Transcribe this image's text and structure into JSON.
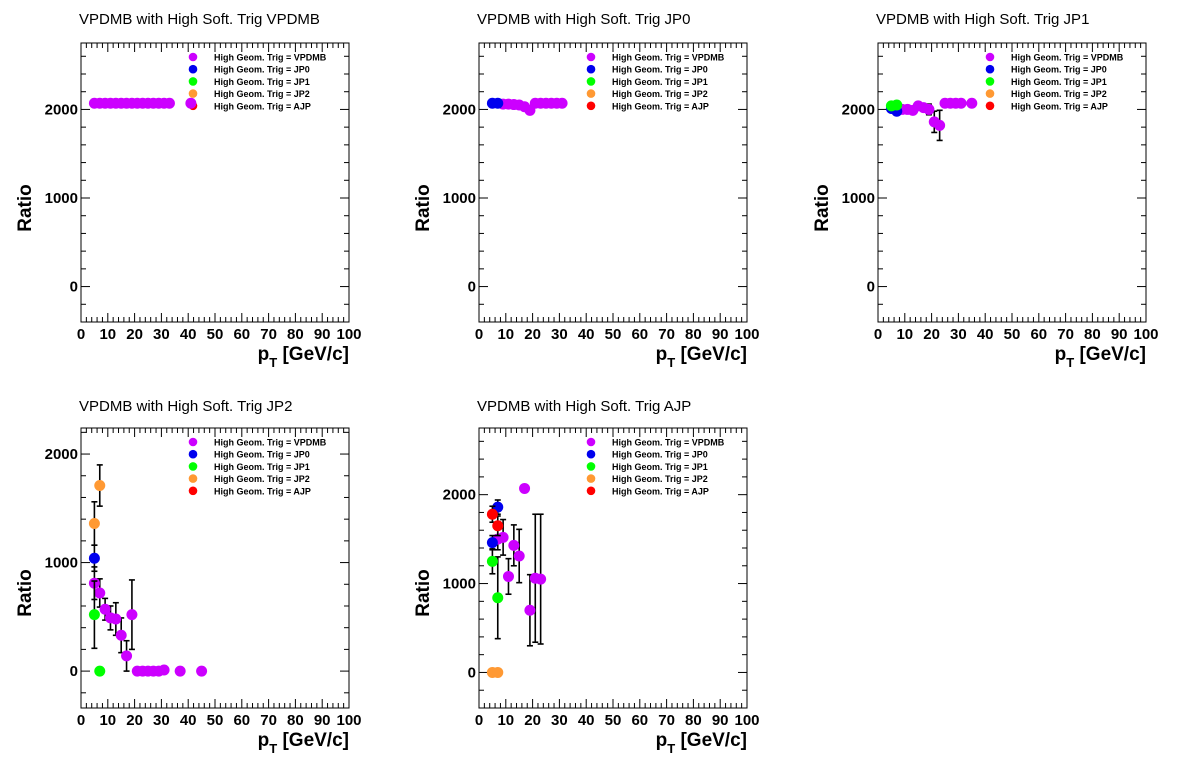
{
  "colors": {
    "VPDMB": "#cc00ff",
    "JP0": "#0000ee",
    "JP1": "#00ff00",
    "JP2": "#ff9933",
    "AJP": "#ff0000"
  },
  "legend_entries": [
    {
      "key": "VPDMB",
      "label": "High Geom. Trig = VPDMB"
    },
    {
      "key": "JP0",
      "label": "High Geom. Trig = JP0"
    },
    {
      "key": "JP1",
      "label": "High Geom. Trig = JP1"
    },
    {
      "key": "JP2",
      "label": "High Geom. Trig = JP2"
    },
    {
      "key": "AJP",
      "label": "High Geom. Trig = AJP"
    }
  ],
  "chart_data": [
    {
      "type": "scatter",
      "title": "VPDMB with High Soft. Trig VPDMB",
      "xlabel_main": "p",
      "xlabel_sub": "T",
      "xlabel_rest": " [GeV/c]",
      "ylabel": "Ratio",
      "xlim": [
        0,
        100
      ],
      "ylim": [
        -400,
        2750
      ],
      "xticks": [
        0,
        10,
        20,
        30,
        40,
        50,
        60,
        70,
        80,
        90,
        100
      ],
      "yticks": [
        0,
        1000,
        2000
      ],
      "legend_position": "top-right",
      "series": [
        {
          "key": "VPDMB",
          "points": [
            {
              "x": 5,
              "y": 2070
            },
            {
              "x": 7,
              "y": 2070
            },
            {
              "x": 9,
              "y": 2070
            },
            {
              "x": 11,
              "y": 2070
            },
            {
              "x": 13,
              "y": 2070
            },
            {
              "x": 15,
              "y": 2070
            },
            {
              "x": 17,
              "y": 2070
            },
            {
              "x": 19,
              "y": 2070
            },
            {
              "x": 21,
              "y": 2070
            },
            {
              "x": 23,
              "y": 2070
            },
            {
              "x": 25,
              "y": 2070
            },
            {
              "x": 27,
              "y": 2070
            },
            {
              "x": 29,
              "y": 2070
            },
            {
              "x": 31,
              "y": 2070
            },
            {
              "x": 33,
              "y": 2070
            },
            {
              "x": 41,
              "y": 2070
            }
          ]
        },
        {
          "key": "JP0",
          "points": []
        },
        {
          "key": "JP1",
          "points": []
        },
        {
          "key": "JP2",
          "points": []
        },
        {
          "key": "AJP",
          "points": []
        }
      ]
    },
    {
      "type": "scatter",
      "title": "VPDMB with High Soft. Trig JP0",
      "xlabel_main": "p",
      "xlabel_sub": "T",
      "xlabel_rest": " [GeV/c]",
      "ylabel": "Ratio",
      "xlim": [
        0,
        100
      ],
      "ylim": [
        -400,
        2750
      ],
      "xticks": [
        0,
        10,
        20,
        30,
        40,
        50,
        60,
        70,
        80,
        90,
        100
      ],
      "yticks": [
        0,
        1000,
        2000
      ],
      "legend_position": "top-right",
      "series": [
        {
          "key": "VPDMB",
          "points": [
            {
              "x": 9,
              "y": 2060
            },
            {
              "x": 11,
              "y": 2060
            },
            {
              "x": 13,
              "y": 2055
            },
            {
              "x": 15,
              "y": 2050
            },
            {
              "x": 17,
              "y": 2030
            },
            {
              "x": 19,
              "y": 1990
            },
            {
              "x": 21,
              "y": 2070
            },
            {
              "x": 23,
              "y": 2070
            },
            {
              "x": 25,
              "y": 2070
            },
            {
              "x": 27,
              "y": 2070
            },
            {
              "x": 29,
              "y": 2070
            },
            {
              "x": 31,
              "y": 2070
            }
          ]
        },
        {
          "key": "JP0",
          "points": [
            {
              "x": 5,
              "y": 2070
            },
            {
              "x": 7,
              "y": 2070
            }
          ]
        },
        {
          "key": "JP1",
          "points": []
        },
        {
          "key": "JP2",
          "points": []
        },
        {
          "key": "AJP",
          "points": []
        }
      ]
    },
    {
      "type": "scatter",
      "title": "VPDMB with High Soft. Trig JP1",
      "xlabel_main": "p",
      "xlabel_sub": "T",
      "xlabel_rest": " [GeV/c]",
      "ylabel": "Ratio",
      "xlim": [
        0,
        100
      ],
      "ylim": [
        -400,
        2750
      ],
      "xticks": [
        0,
        10,
        20,
        30,
        40,
        50,
        60,
        70,
        80,
        90,
        100
      ],
      "yticks": [
        0,
        1000,
        2000
      ],
      "legend_position": "top-right",
      "series": [
        {
          "key": "VPDMB",
          "points": [
            {
              "x": 9,
              "y": 2000
            },
            {
              "x": 11,
              "y": 2000
            },
            {
              "x": 13,
              "y": 1990
            },
            {
              "x": 15,
              "y": 2040
            },
            {
              "x": 17,
              "y": 2020
            },
            {
              "x": 19,
              "y": 2000,
              "err": 60
            },
            {
              "x": 21,
              "y": 1860,
              "err": 120
            },
            {
              "x": 23,
              "y": 1820,
              "err": 170
            },
            {
              "x": 25,
              "y": 2070
            },
            {
              "x": 27,
              "y": 2070
            },
            {
              "x": 29,
              "y": 2070
            },
            {
              "x": 31,
              "y": 2070
            },
            {
              "x": 35,
              "y": 2070
            }
          ]
        },
        {
          "key": "JP0",
          "points": [
            {
              "x": 5,
              "y": 2010
            },
            {
              "x": 7,
              "y": 1980
            }
          ]
        },
        {
          "key": "JP1",
          "points": [
            {
              "x": 5,
              "y": 2040
            },
            {
              "x": 7,
              "y": 2050
            }
          ]
        },
        {
          "key": "JP2",
          "points": []
        },
        {
          "key": "AJP",
          "points": []
        }
      ]
    },
    {
      "type": "scatter",
      "title": "VPDMB with High Soft. Trig JP2",
      "xlabel_main": "p",
      "xlabel_sub": "T",
      "xlabel_rest": " [GeV/c]",
      "ylabel": "Ratio",
      "xlim": [
        0,
        100
      ],
      "ylim": [
        -340,
        2240
      ],
      "xticks": [
        0,
        10,
        20,
        30,
        40,
        50,
        60,
        70,
        80,
        90,
        100
      ],
      "yticks": [
        0,
        1000,
        2000
      ],
      "legend_position": "top-right",
      "series": [
        {
          "key": "VPDMB",
          "points": [
            {
              "x": 5,
              "y": 810,
              "err": 150
            },
            {
              "x": 7,
              "y": 720,
              "err": 130
            },
            {
              "x": 9,
              "y": 570,
              "err": 100
            },
            {
              "x": 11,
              "y": 490,
              "err": 110
            },
            {
              "x": 13,
              "y": 480,
              "err": 150
            },
            {
              "x": 15,
              "y": 330,
              "err": 160
            },
            {
              "x": 17,
              "y": 140,
              "err": 140
            },
            {
              "x": 19,
              "y": 520,
              "err": 320
            },
            {
              "x": 21,
              "y": 0
            },
            {
              "x": 23,
              "y": 0
            },
            {
              "x": 25,
              "y": 0
            },
            {
              "x": 27,
              "y": 0
            },
            {
              "x": 29,
              "y": 0
            },
            {
              "x": 31,
              "y": 10
            },
            {
              "x": 37,
              "y": 0
            },
            {
              "x": 45,
              "y": 0
            }
          ]
        },
        {
          "key": "JP0",
          "points": [
            {
              "x": 5,
              "y": 1040,
              "err": 120
            }
          ]
        },
        {
          "key": "JP1",
          "points": [
            {
              "x": 5,
              "y": 520,
              "err": 310
            },
            {
              "x": 7,
              "y": 0
            }
          ]
        },
        {
          "key": "JP2",
          "points": [
            {
              "x": 5,
              "y": 1360,
              "err": 200
            },
            {
              "x": 7,
              "y": 1710,
              "err": 190
            }
          ]
        },
        {
          "key": "AJP",
          "points": []
        }
      ]
    },
    {
      "type": "scatter",
      "title": "VPDMB with High Soft. Trig AJP",
      "xlabel_main": "p",
      "xlabel_sub": "T",
      "xlabel_rest": " [GeV/c]",
      "ylabel": "Ratio",
      "xlim": [
        0,
        100
      ],
      "ylim": [
        -400,
        2750
      ],
      "xticks": [
        0,
        10,
        20,
        30,
        40,
        50,
        60,
        70,
        80,
        90,
        100
      ],
      "yticks": [
        0,
        1000,
        2000
      ],
      "legend_position": "top-right",
      "series": [
        {
          "key": "VPDMB",
          "points": [
            {
              "x": 7,
              "y": 1500,
              "err": 120
            },
            {
              "x": 9,
              "y": 1520,
              "err": 200
            },
            {
              "x": 11,
              "y": 1080,
              "err": 200
            },
            {
              "x": 13,
              "y": 1430,
              "err": 230
            },
            {
              "x": 15,
              "y": 1310,
              "err": 300
            },
            {
              "x": 17,
              "y": 2070
            },
            {
              "x": 19,
              "y": 700,
              "err": 400
            },
            {
              "x": 21,
              "y": 1060,
              "err": 720
            },
            {
              "x": 23,
              "y": 1050,
              "err": 730
            }
          ]
        },
        {
          "key": "JP0",
          "points": [
            {
              "x": 5,
              "y": 1460,
              "err": 80
            },
            {
              "x": 7,
              "y": 1860,
              "err": 80
            }
          ]
        },
        {
          "key": "JP1",
          "points": [
            {
              "x": 5,
              "y": 1250,
              "err": 140
            },
            {
              "x": 7,
              "y": 840,
              "err": 460
            }
          ]
        },
        {
          "key": "JP2",
          "points": [
            {
              "x": 5,
              "y": 0
            },
            {
              "x": 7,
              "y": 0
            }
          ]
        },
        {
          "key": "AJP",
          "points": [
            {
              "x": 5,
              "y": 1780,
              "err": 90
            },
            {
              "x": 7,
              "y": 1650,
              "err": 110
            }
          ]
        }
      ]
    }
  ]
}
